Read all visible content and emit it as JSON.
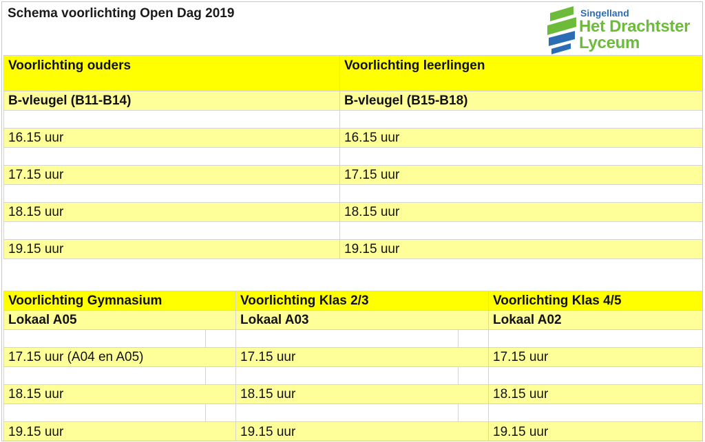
{
  "document": {
    "title": "Schema voorlichting Open Dag 2019"
  },
  "logo": {
    "line1": "Singelland",
    "line2": "Het Drachtster",
    "line3": "Lyceum",
    "colors": {
      "green": "#6dbb3b",
      "blue": "#2a6db5"
    }
  },
  "colors": {
    "header_yellow": "#ffff00",
    "row_light_yellow": "#ffff99"
  },
  "table1": {
    "headers": [
      "Voorlichting ouders",
      "Voorlichting leerlingen"
    ],
    "locations": [
      "B-vleugel (B11-B14)",
      "B-vleugel (B15-B18)"
    ],
    "times": [
      [
        "16.15 uur",
        "16.15 uur"
      ],
      [
        "17.15 uur",
        "17.15 uur"
      ],
      [
        "18.15 uur",
        "18.15 uur"
      ],
      [
        "19.15 uur",
        "19.15 uur"
      ]
    ]
  },
  "table2": {
    "headers": [
      "Voorlichting Gymnasium",
      "Voorlichting Klas 2/3",
      "Voorlichting Klas 4/5"
    ],
    "locations": [
      "Lokaal A05",
      "Lokaal A03",
      "Lokaal A02"
    ],
    "times": [
      [
        "17.15 uur (A04 en A05)",
        "17.15 uur",
        "17.15 uur"
      ],
      [
        "18.15 uur",
        "18.15 uur",
        "18.15 uur"
      ],
      [
        "19.15 uur",
        "19.15 uur",
        "19.15 uur"
      ]
    ]
  }
}
